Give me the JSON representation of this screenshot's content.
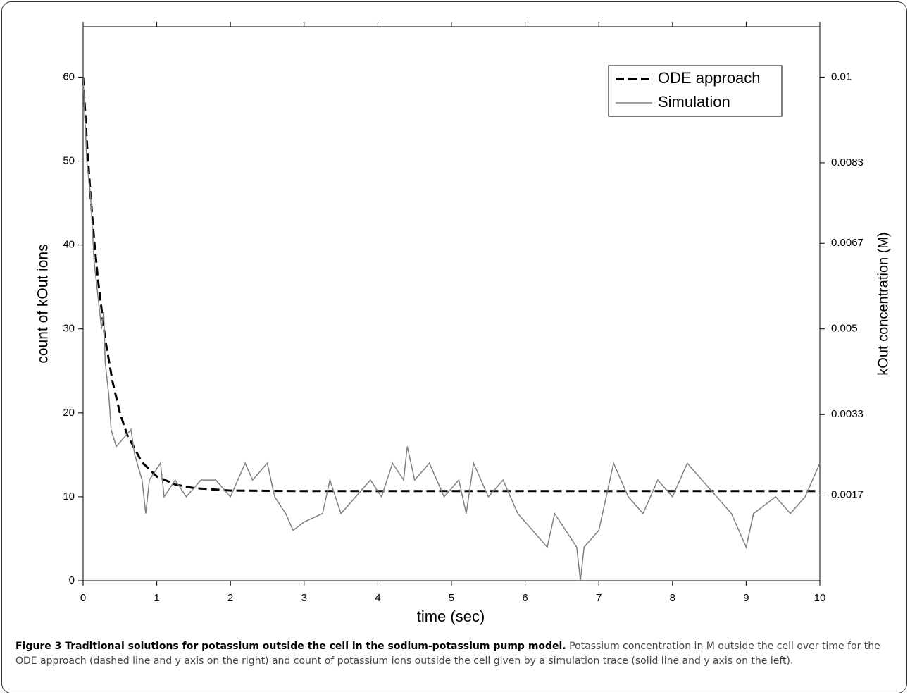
{
  "chart_data": {
    "type": "line",
    "xlabel": "time  (sec)",
    "ylabel": "count of kOut ions",
    "y2label": "kOut concentration  (M)",
    "xlim": [
      0,
      10
    ],
    "xticks": [
      0,
      1,
      2,
      3,
      4,
      5,
      6,
      7,
      8,
      9,
      10
    ],
    "ylim": [
      0,
      66
    ],
    "yticks": [
      0,
      10,
      20,
      30,
      40,
      50,
      60
    ],
    "y2lim": [
      0,
      0.011
    ],
    "y2ticks": [
      0.0017,
      0.0033,
      0.005,
      0.0067,
      0.0083,
      0.01
    ],
    "legend": "upper right",
    "series": [
      {
        "name": "ODE approach",
        "color": "#000000",
        "dash": true,
        "axis": "y2",
        "x": [
          0,
          0.05,
          0.1,
          0.15,
          0.2,
          0.3,
          0.4,
          0.5,
          0.6,
          0.8,
          1,
          1.25,
          1.5,
          2,
          3,
          5,
          10
        ],
        "values": [
          0.01,
          0.00874,
          0.00767,
          0.00677,
          0.006,
          0.0048,
          0.00395,
          0.00333,
          0.00289,
          0.00235,
          0.00207,
          0.00191,
          0.00184,
          0.00179,
          0.00178,
          0.00178,
          0.00178
        ]
      },
      {
        "name": "Simulation",
        "color": "#808080",
        "dash": false,
        "x": [
          0,
          0.05,
          0.1,
          0.15,
          0.2,
          0.25,
          0.28,
          0.3,
          0.35,
          0.38,
          0.45,
          0.55,
          0.65,
          0.7,
          0.8,
          0.85,
          0.9,
          1.05,
          1.1,
          1.25,
          1.4,
          1.6,
          1.8,
          2,
          2.2,
          2.3,
          2.5,
          2.6,
          2.75,
          2.85,
          3,
          3.25,
          3.35,
          3.5,
          3.7,
          3.9,
          4.05,
          4.2,
          4.35,
          4.4,
          4.5,
          4.7,
          4.9,
          5.1,
          5.2,
          5.3,
          5.5,
          5.7,
          5.9,
          6.1,
          6.3,
          6.4,
          6.7,
          6.75,
          6.8,
          7,
          7.2,
          7.4,
          7.6,
          7.8,
          8,
          8.2,
          8.4,
          8.6,
          8.8,
          9,
          9.1,
          9.4,
          9.6,
          9.8,
          10
        ],
        "values": [
          60,
          50,
          46,
          38,
          34,
          30,
          32,
          26,
          22,
          18,
          16,
          17,
          18,
          15,
          12,
          8,
          12,
          14,
          10,
          12,
          10,
          12,
          12,
          10,
          14,
          12,
          14,
          10,
          8,
          6,
          7,
          8,
          12,
          8,
          10,
          12,
          10,
          14,
          12,
          16,
          12,
          14,
          10,
          12,
          8,
          14,
          10,
          12,
          8,
          6,
          4,
          8,
          4,
          0,
          4,
          6,
          14,
          10,
          8,
          12,
          10,
          14,
          12,
          10,
          8,
          4,
          8,
          10,
          8,
          10,
          14
        ]
      }
    ]
  },
  "caption_title": "Figure 3 Traditional solutions for potassium outside the cell in the sodium-potassium pump model.",
  "caption_text": "Potassium concentration in M outside the cell over time for the ODE approach (dashed line and y axis on the right) and count of potassium ions outside the cell given by a simulation trace (solid line and y axis on the left)."
}
